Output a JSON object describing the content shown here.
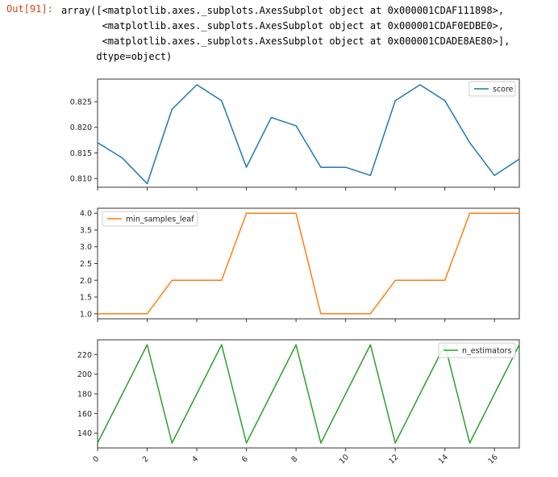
{
  "cell": {
    "prompt": "Out[91]:",
    "lines": [
      "array([<matplotlib.axes._subplots.AxesSubplot object at 0x000001CDAF111898>,",
      "       <matplotlib.axes._subplots.AxesSubplot object at 0x000001CDAF0EDBE0>,",
      "       <matplotlib.axes._subplots.AxesSubplot object at 0x000001CDADE8AE80>],",
      "      dtype=object)"
    ]
  },
  "chart_data": [
    {
      "type": "line",
      "series": [
        {
          "name": "score",
          "color": "#1f77b4",
          "values": [
            0.817,
            0.814,
            0.809,
            0.8235,
            0.8283,
            0.8252,
            0.8122,
            0.8219,
            0.8203,
            0.8122,
            0.8122,
            0.8106,
            0.8252,
            0.8283,
            0.8252,
            0.817,
            0.8106,
            0.8138
          ]
        }
      ],
      "x": [
        0,
        1,
        2,
        3,
        4,
        5,
        6,
        7,
        8,
        9,
        10,
        11,
        12,
        13,
        14,
        15,
        16,
        17
      ],
      "xlim": [
        0,
        17
      ],
      "ylim": [
        0.8083,
        0.8294
      ],
      "yticks": [
        "0.810",
        "0.815",
        "0.820",
        "0.825"
      ],
      "ytick_values": [
        0.81,
        0.815,
        0.82,
        0.825
      ],
      "legend": "top-right",
      "grid": false
    },
    {
      "type": "line",
      "series": [
        {
          "name": "min_samples_leaf",
          "color": "#ff7f0e",
          "values": [
            1,
            1,
            1,
            2,
            2,
            2,
            4,
            4,
            4,
            1,
            1,
            1,
            2,
            2,
            2,
            4,
            4,
            4
          ]
        }
      ],
      "x": [
        0,
        1,
        2,
        3,
        4,
        5,
        6,
        7,
        8,
        9,
        10,
        11,
        12,
        13,
        14,
        15,
        16,
        17
      ],
      "xlim": [
        0,
        17
      ],
      "ylim": [
        0.85,
        4.15
      ],
      "yticks": [
        "1.0",
        "1.5",
        "2.0",
        "2.5",
        "3.0",
        "3.5",
        "4.0"
      ],
      "ytick_values": [
        1,
        1.5,
        2,
        2.5,
        3,
        3.5,
        4
      ],
      "legend": "top-left",
      "grid": false
    },
    {
      "type": "line",
      "series": [
        {
          "name": "n_estimators",
          "color": "#2ca02c",
          "values": [
            130,
            180,
            230,
            130,
            180,
            230,
            130,
            180,
            230,
            130,
            180,
            230,
            130,
            180,
            230,
            130,
            180,
            230
          ]
        }
      ],
      "x": [
        0,
        1,
        2,
        3,
        4,
        5,
        6,
        7,
        8,
        9,
        10,
        11,
        12,
        13,
        14,
        15,
        16,
        17
      ],
      "xlim": [
        0,
        17
      ],
      "ylim": [
        125,
        235
      ],
      "yticks": [
        "140",
        "160",
        "180",
        "200",
        "220"
      ],
      "ytick_values": [
        140,
        160,
        180,
        200,
        220
      ],
      "xticks": [
        "0",
        "2",
        "4",
        "6",
        "8",
        "10",
        "12",
        "14",
        "16"
      ],
      "xtick_values": [
        0,
        2,
        4,
        6,
        8,
        10,
        12,
        14,
        16
      ],
      "legend": "top-right",
      "grid": false
    }
  ]
}
